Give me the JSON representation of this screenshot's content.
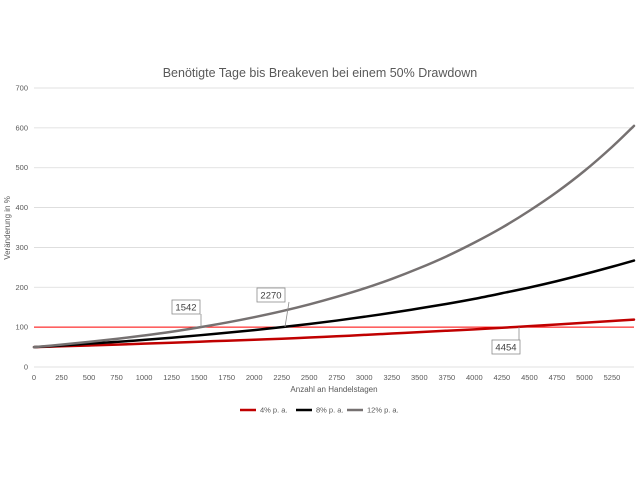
{
  "chart_data": {
    "type": "line",
    "title": "Benötigte Tage bis Breakeven bei einem 50% Drawdown",
    "xlabel": "Anzahl an Handelstagen",
    "ylabel": "Veränderung in %",
    "xlim": [
      0,
      5450
    ],
    "ylim": [
      0,
      700
    ],
    "xticks": [
      0,
      250,
      500,
      750,
      1000,
      1250,
      1500,
      1750,
      2000,
      2250,
      2500,
      2750,
      3000,
      3250,
      3500,
      3750,
      4000,
      4250,
      4500,
      4750,
      5000,
      5250
    ],
    "yticks": [
      0,
      100,
      200,
      300,
      400,
      500,
      600,
      700
    ],
    "grid": "horizontal",
    "legend_position": "bottom",
    "x": [
      0,
      250,
      500,
      750,
      1000,
      1250,
      1500,
      1750,
      2000,
      2250,
      2500,
      2750,
      3000,
      3250,
      3500,
      3750,
      4000,
      4250,
      4500,
      4750,
      5000,
      5250,
      5450
    ],
    "series": [
      {
        "name": "4% p. a.",
        "color": "#c00000",
        "values": [
          50,
          52,
          54,
          56,
          58.5,
          61,
          63.5,
          66,
          68.5,
          71,
          74,
          77,
          80.5,
          84,
          87.5,
          91,
          94.5,
          98.5,
          102.5,
          106.5,
          111,
          115.5,
          119
        ]
      },
      {
        "name": "8% p. a.",
        "color": "#000000",
        "values": [
          50,
          54,
          58.5,
          63,
          68,
          73.5,
          79.5,
          86,
          92.5,
          100,
          108,
          116.5,
          126,
          136,
          147,
          158.5,
          171,
          185,
          199.5,
          215.5,
          233,
          251.5,
          267
        ]
      },
      {
        "name": "12% p. a.",
        "color": "#767171",
        "values": [
          50,
          56,
          63,
          70.5,
          79,
          88.5,
          99.5,
          111.5,
          125,
          140,
          157,
          176,
          197,
          221,
          248,
          278,
          312,
          349.5,
          392,
          439,
          492,
          552,
          605
        ]
      }
    ],
    "reference_line": {
      "value": 100,
      "color": "#ff0000"
    },
    "annotations": [
      {
        "label": "1542",
        "x": 1542,
        "y": 100
      },
      {
        "label": "2270",
        "x": 2270,
        "y": 100
      },
      {
        "label": "4454",
        "x": 4454,
        "y": 100
      }
    ]
  }
}
